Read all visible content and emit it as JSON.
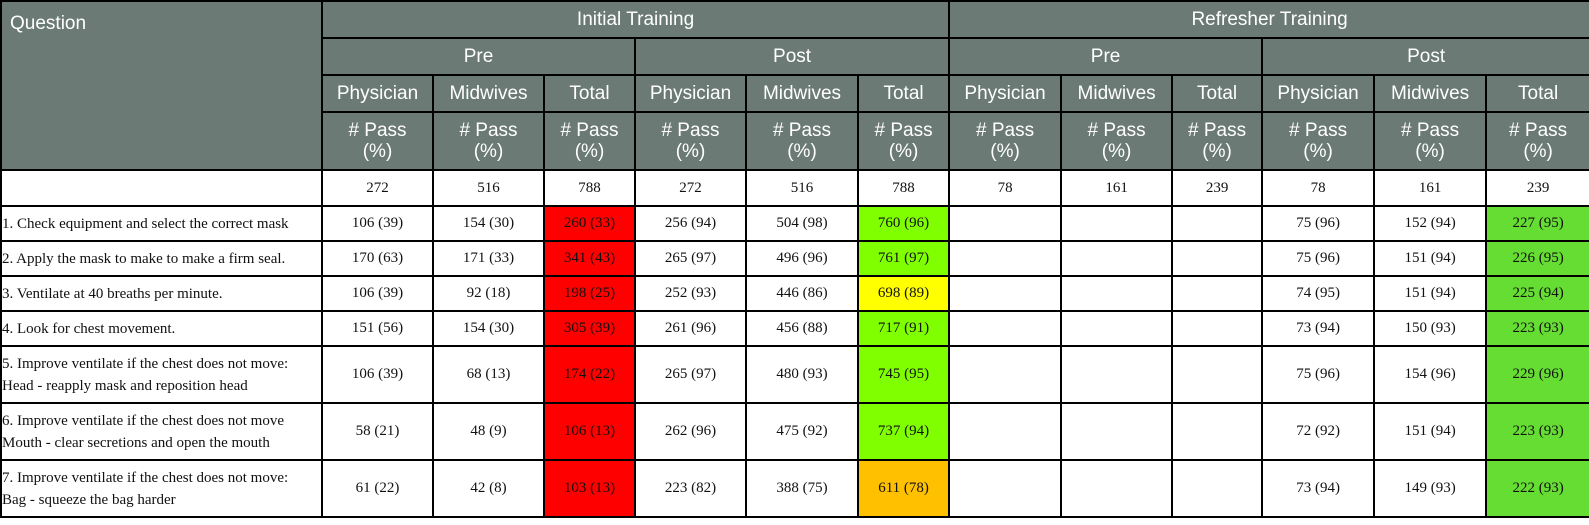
{
  "header": {
    "question": "Question",
    "groups": [
      "Initial Training",
      "Refresher Training"
    ],
    "phases": [
      "Pre",
      "Post",
      "Pre",
      "Post"
    ],
    "roles": [
      "Physician",
      "Midwives",
      "Total",
      "Physician",
      "Midwives",
      "Total",
      "Physician",
      "Midwives",
      "Total",
      "Physician",
      "Midwives",
      "Total"
    ],
    "pass_label": "# Pass\n(%)"
  },
  "n_row": [
    "272",
    "516",
    "788",
    "272",
    "516",
    "788",
    "78",
    "161",
    "239",
    "78",
    "161",
    "239"
  ],
  "colors": {
    "header_bg": "#6b7a75",
    "red": "#ff0000",
    "green": "#80ff00",
    "yellow": "#ffff00",
    "orange": "#ffc000",
    "green_dark": "#66dd33"
  },
  "rows": [
    {
      "question": "1. Check equipment and select the correct mask",
      "cells": [
        "106 (39)",
        "154 (30)",
        "260 (33)",
        "256 (94)",
        "504 (98)",
        "760 (96)",
        "",
        "",
        "",
        "75 (96)",
        "152 (94)",
        "227 (95)"
      ],
      "hl": {
        "2": "red",
        "5": "green",
        "11": "green_dark"
      }
    },
    {
      "question": "2. Apply the mask to make to make a firm seal.",
      "cells": [
        "170 (63)",
        "171 (33)",
        "341 (43)",
        "265 (97)",
        "496 (96)",
        "761 (97)",
        "",
        "",
        "",
        "75 (96)",
        "151 (94)",
        "226 (95)"
      ],
      "hl": {
        "2": "red",
        "5": "green",
        "11": "green_dark"
      }
    },
    {
      "question": "3. Ventilate at 40 breaths per minute.",
      "cells": [
        "106 (39)",
        "92 (18)",
        "198 (25)",
        "252 (93)",
        "446 (86)",
        "698 (89)",
        "",
        "",
        "",
        "74 (95)",
        "151 (94)",
        "225 (94)"
      ],
      "hl": {
        "2": "red",
        "5": "yellow",
        "11": "green_dark"
      }
    },
    {
      "question": "4. Look for chest movement.",
      "cells": [
        "151 (56)",
        "154 (30)",
        "305 (39)",
        "261 (96)",
        "456 (88)",
        "717 (91)",
        "",
        "",
        "",
        "73 (94)",
        "150 (93)",
        "223 (93)"
      ],
      "hl": {
        "2": "red",
        "5": "green",
        "11": "green_dark"
      }
    },
    {
      "question": "5. Improve ventilate if the chest does not move:\nHead - reapply mask and reposition head",
      "cells": [
        "106 (39)",
        "68 (13)",
        "174 (22)",
        "265 (97)",
        "480 (93)",
        "745 (95)",
        "",
        "",
        "",
        "75 (96)",
        "154 (96)",
        "229 (96)"
      ],
      "hl": {
        "2": "red",
        "5": "green",
        "11": "green_dark"
      }
    },
    {
      "question": "6. Improve ventilate if the chest does not move\nMouth - clear secretions and open the mouth",
      "cells": [
        "58 (21)",
        "48 (9)",
        "106 (13)",
        "262 (96)",
        "475 (92)",
        "737 (94)",
        "",
        "",
        "",
        "72 (92)",
        "151 (94)",
        "223 (93)"
      ],
      "hl": {
        "2": "red",
        "5": "green",
        "11": "green_dark"
      }
    },
    {
      "question": "7. Improve ventilate if the chest does not move:\nBag - squeeze the bag harder",
      "cells": [
        "61 (22)",
        "42 (8)",
        "103 (13)",
        "223 (82)",
        "388 (75)",
        "611 (78)",
        "",
        "",
        "",
        "73 (94)",
        "149 (93)",
        "222 (93)"
      ],
      "hl": {
        "2": "red",
        "5": "orange",
        "11": "green_dark"
      }
    }
  ]
}
